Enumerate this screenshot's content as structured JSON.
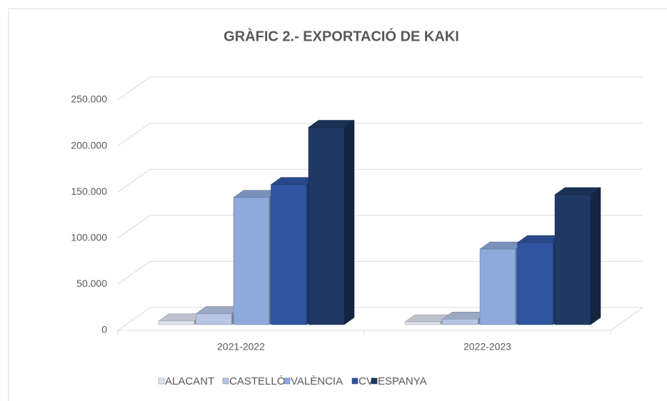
{
  "chart_data": {
    "type": "bar3d",
    "title": "GRÀFIC 2.- EXPORTACIÓ DE KAKI",
    "categories": [
      "2021-2022",
      "2022-2023"
    ],
    "series": [
      {
        "name": "ALACANT",
        "color": "#dde3ef",
        "values": [
          4000,
          3000
        ]
      },
      {
        "name": "CASTELLÓ",
        "color": "#b7c6e5",
        "values": [
          12000,
          6000
        ]
      },
      {
        "name": "VALÈNCIA",
        "color": "#8eaadb",
        "values": [
          138000,
          82000
        ]
      },
      {
        "name": "CV",
        "color": "#2f55a0",
        "values": [
          152000,
          89000
        ]
      },
      {
        "name": "ESPANYA",
        "color": "#1f3864",
        "values": [
          214000,
          141000
        ]
      }
    ],
    "ylim": [
      0,
      250000
    ],
    "yticks": [
      0,
      {
        "value": 50000,
        "label": "50.000"
      },
      {
        "value": 100000,
        "label": "100.000"
      },
      {
        "value": 150000,
        "label": "150.000"
      },
      {
        "value": 200000,
        "label": "200.000"
      },
      {
        "value": 250000,
        "label": "250.000"
      }
    ],
    "grid": true,
    "legend": "bottom"
  }
}
